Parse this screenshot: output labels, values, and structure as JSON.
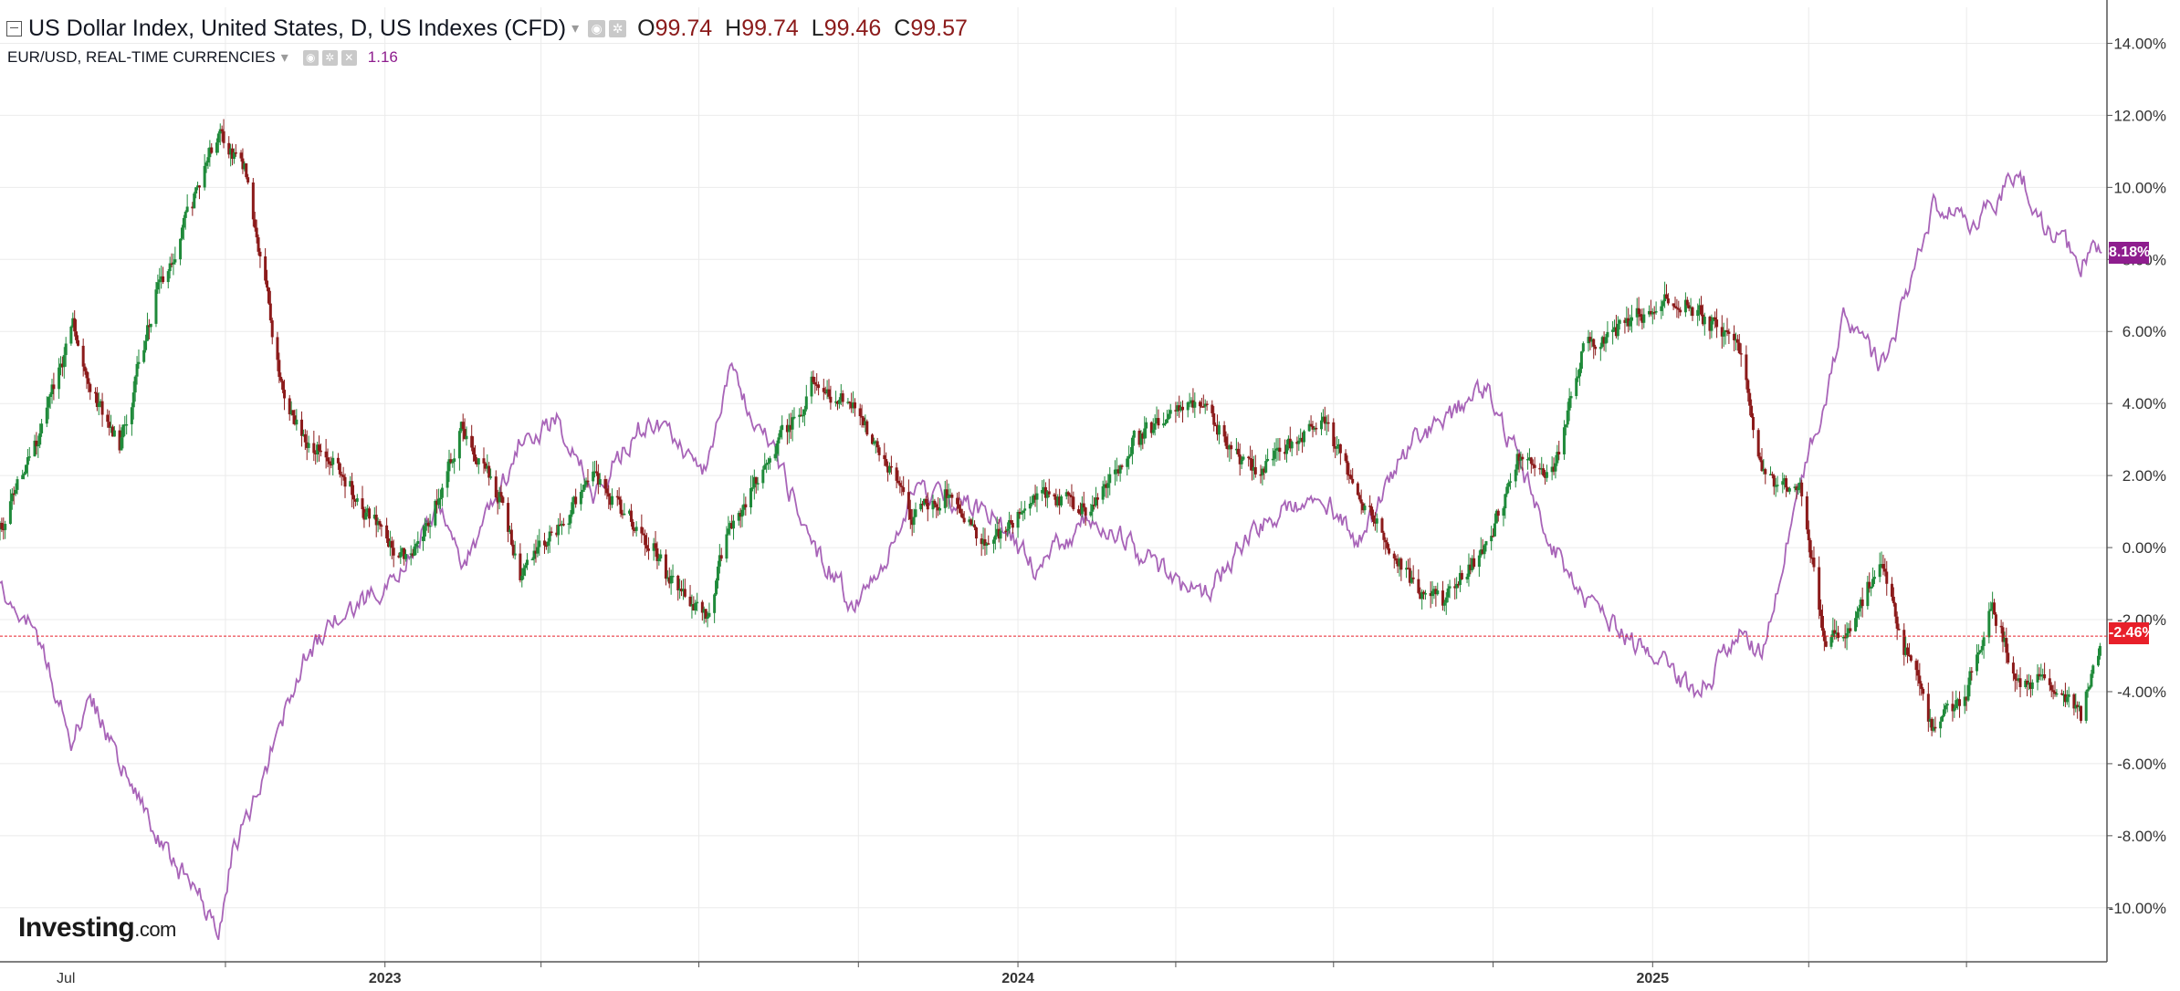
{
  "legend": {
    "main_title": "US Dollar Index, United States, D, US Indexes (CFD)",
    "ohlc": [
      {
        "k": "O",
        "v": "99.74"
      },
      {
        "k": "H",
        "v": "99.74"
      },
      {
        "k": "L",
        "v": "99.46"
      },
      {
        "k": "C",
        "v": "99.57"
      }
    ],
    "overlay_title": "EUR/USD, REAL-TIME CURRENCIES",
    "overlay_value": "1.16"
  },
  "badges": {
    "eur": "8.18%",
    "dxy": "-2.46%"
  },
  "logo": {
    "brand": "Investing",
    "suffix": ".com"
  },
  "colors": {
    "up": "#1f8a3a",
    "down": "#8b1a1a",
    "eur_line": "#a864b8",
    "last_price_line": "#e8202a",
    "grid": "#ebebeb"
  },
  "chart_data": {
    "type": "line",
    "yaxis": {
      "unit": "percent",
      "range": [
        -11.5,
        15
      ],
      "ticks": [
        "14.00%",
        "12.00%",
        "10.00%",
        "8.00%",
        "6.00%",
        "4.00%",
        "2.00%",
        "0.00%",
        "-2.00%",
        "-4.00%",
        "-6.00%",
        "-8.00%",
        "-10.00%"
      ],
      "tick_values": [
        14,
        12,
        10,
        8,
        6,
        4,
        2,
        0,
        -2,
        -4,
        -6,
        -8,
        -10
      ]
    },
    "xaxis": {
      "range": [
        "2022-05-24",
        "2025-09-20"
      ],
      "labels": [
        {
          "text": "Jul",
          "date": "2022-07-01",
          "bold": false
        },
        {
          "text": "2023",
          "date": "2023-01-01",
          "bold": true
        },
        {
          "text": "2024",
          "date": "2024-01-01",
          "bold": true
        },
        {
          "text": "2025",
          "date": "2025-01-01",
          "bold": true
        }
      ],
      "gridlines": [
        "2022-10-01",
        "2023-01-01",
        "2023-04-01",
        "2023-07-01",
        "2023-10-01",
        "2024-01-01",
        "2024-04-01",
        "2024-07-01",
        "2024-10-01",
        "2025-01-01",
        "2025-04-01",
        "2025-07-01"
      ]
    },
    "grid": true,
    "last_price_line": -2.46,
    "series": [
      {
        "name": "US Dollar Index",
        "style": "candlestick",
        "dates": [
          "2022-05-24",
          "2022-06-15",
          "2022-07-05",
          "2022-07-14",
          "2022-08-01",
          "2022-08-22",
          "2022-09-27",
          "2022-10-12",
          "2022-10-25",
          "2022-11-04",
          "2022-11-15",
          "2022-12-01",
          "2022-12-20",
          "2023-01-15",
          "2023-02-01",
          "2023-02-15",
          "2023-03-08",
          "2023-03-20",
          "2023-04-10",
          "2023-05-01",
          "2023-05-31",
          "2023-06-15",
          "2023-07-05",
          "2023-07-18",
          "2023-08-10",
          "2023-09-05",
          "2023-09-27",
          "2023-10-15",
          "2023-11-01",
          "2023-11-20",
          "2023-12-15",
          "2024-01-10",
          "2024-02-14",
          "2024-03-07",
          "2024-04-16",
          "2024-05-15",
          "2024-06-25",
          "2024-07-15",
          "2024-08-15",
          "2024-09-01",
          "2024-09-27",
          "2024-10-15",
          "2024-11-05",
          "2024-11-22",
          "2025-01-13",
          "2025-01-28",
          "2025-02-20",
          "2025-03-05",
          "2025-03-28",
          "2025-04-10",
          "2025-04-21",
          "2025-05-12",
          "2025-05-28",
          "2025-06-12",
          "2025-07-01",
          "2025-07-15",
          "2025-08-01",
          "2025-08-15",
          "2025-09-05",
          "2025-09-17"
        ],
        "values": [
          0.5,
          3.0,
          6.0,
          4.5,
          2.8,
          7.0,
          11.5,
          10.5,
          7.0,
          4.0,
          3.0,
          2.5,
          1.0,
          -0.5,
          1.5,
          3.3,
          1.5,
          -0.8,
          0.5,
          2.0,
          0.2,
          -0.8,
          -2.0,
          0.5,
          2.5,
          4.5,
          4.0,
          2.5,
          0.8,
          1.5,
          0.0,
          1.5,
          1.0,
          3.0,
          4.0,
          2.0,
          3.5,
          1.5,
          -1.0,
          -1.5,
          0.0,
          2.5,
          2.0,
          5.5,
          7.0,
          6.5,
          5.5,
          2.0,
          1.5,
          -2.5,
          -2.5,
          -0.5,
          -3.0,
          -5.0,
          -4.0,
          -1.5,
          -4.0,
          -3.5,
          -4.8,
          -2.46
        ]
      },
      {
        "name": "EUR/USD",
        "style": "line",
        "dates": [
          "2022-05-24",
          "2022-06-01",
          "2022-06-15",
          "2022-07-05",
          "2022-07-14",
          "2022-08-01",
          "2022-08-22",
          "2022-09-27",
          "2022-10-05",
          "2022-10-25",
          "2022-11-15",
          "2022-12-05",
          "2023-01-03",
          "2023-01-15",
          "2023-02-01",
          "2023-02-15",
          "2023-03-08",
          "2023-03-20",
          "2023-04-10",
          "2023-05-01",
          "2023-05-31",
          "2023-06-15",
          "2023-07-05",
          "2023-07-18",
          "2023-08-10",
          "2023-09-05",
          "2023-09-27",
          "2023-10-15",
          "2023-11-01",
          "2023-12-15",
          "2024-01-10",
          "2024-02-14",
          "2024-03-07",
          "2024-04-16",
          "2024-05-15",
          "2024-06-25",
          "2024-07-15",
          "2024-08-15",
          "2024-09-01",
          "2024-09-27",
          "2024-10-15",
          "2024-11-05",
          "2024-11-22",
          "2025-01-13",
          "2025-01-28",
          "2025-02-20",
          "2025-03-05",
          "2025-03-28",
          "2025-04-10",
          "2025-04-21",
          "2025-05-12",
          "2025-05-28",
          "2025-06-12",
          "2025-07-01",
          "2025-07-15",
          "2025-08-01",
          "2025-08-15",
          "2025-09-05",
          "2025-09-17"
        ],
        "values": [
          -1.0,
          -1.5,
          -2.5,
          -5.5,
          -4.0,
          -6.0,
          -8.0,
          -10.5,
          -8.5,
          -6.0,
          -3.0,
          -2.0,
          -1.0,
          0.0,
          1.0,
          -0.5,
          1.5,
          3.0,
          3.5,
          1.5,
          3.5,
          3.0,
          2.0,
          5.0,
          3.0,
          0.0,
          -1.5,
          -0.5,
          1.5,
          1.0,
          -0.5,
          1.0,
          0.0,
          -1.5,
          0.5,
          1.5,
          0.0,
          3.0,
          3.5,
          4.5,
          2.5,
          0.0,
          -1.5,
          -3.5,
          -4.0,
          -2.5,
          -3.0,
          2.0,
          4.0,
          6.5,
          5.0,
          7.0,
          9.5,
          9.0,
          9.5,
          10.5,
          9.0,
          8.0,
          8.18
        ]
      }
    ]
  }
}
